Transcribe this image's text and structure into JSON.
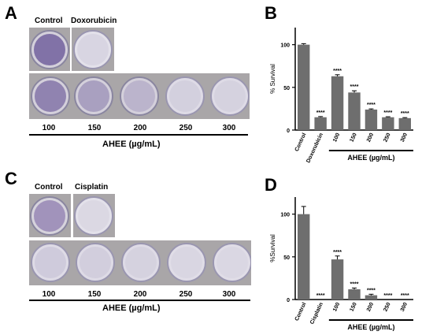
{
  "panels": {
    "A": {
      "letter": "A",
      "top_labels": [
        "Control",
        "Doxorubicin"
      ],
      "concentrations": [
        "100",
        "150",
        "200",
        "250",
        "300"
      ],
      "axis_label": "AHEE (µg/mL)"
    },
    "C": {
      "letter": "C",
      "top_labels": [
        "Control",
        "Cisplatin"
      ],
      "concentrations": [
        "100",
        "150",
        "200",
        "250",
        "300"
      ],
      "axis_label": "AHEE (µg/mL)"
    }
  },
  "chart_data": [
    {
      "letter": "B",
      "type": "bar",
      "categories": [
        "Control",
        "Doxorubicin",
        "100",
        "150",
        "200",
        "250",
        "300"
      ],
      "values": [
        100,
        15,
        63,
        44,
        24,
        15,
        14
      ],
      "errors": [
        1.2,
        0.8,
        1.8,
        2.0,
        0.8,
        0.6,
        0.6
      ],
      "significance": [
        "",
        "****",
        "****",
        "****",
        "****",
        "****",
        "****"
      ],
      "ylabel": "% Survival",
      "yticks": [
        0,
        50,
        100
      ],
      "ylim": [
        0,
        120
      ],
      "group_label": "AHEE (µg/mL)",
      "bar_color": "#6e6e6e"
    },
    {
      "letter": "D",
      "type": "bar",
      "categories": [
        "Control",
        "Cisplatin",
        "100",
        "150",
        "200",
        "250",
        "300"
      ],
      "values": [
        100,
        0,
        47,
        12,
        5,
        0,
        0
      ],
      "errors": [
        9,
        0,
        4,
        1.5,
        1.2,
        0,
        0
      ],
      "significance": [
        "",
        "****",
        "****",
        "****",
        "****",
        "****",
        "****"
      ],
      "ylabel": "%Survival",
      "yticks": [
        0,
        50,
        100
      ],
      "ylim": [
        0,
        120
      ],
      "group_label": "AHEE (µg/mL)",
      "bar_color": "#6e6e6e"
    }
  ]
}
